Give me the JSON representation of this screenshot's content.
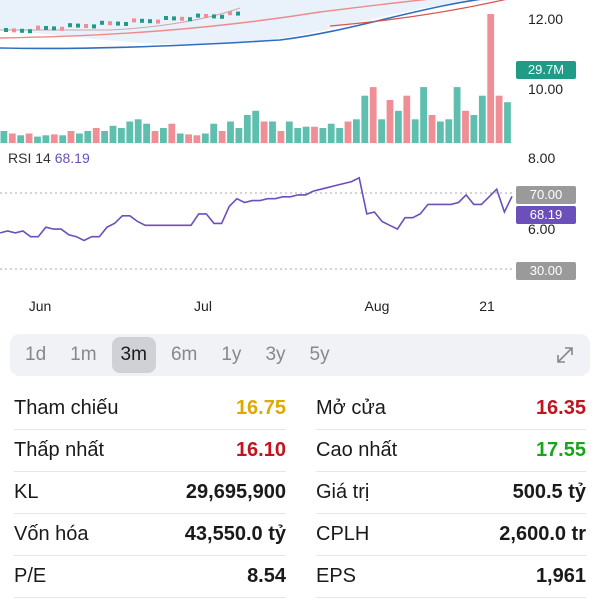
{
  "chart": {
    "price_axis": [
      "12.00",
      "10.00",
      "8.00",
      "6.00"
    ],
    "volume_tag": "29.7M",
    "rsi_legend_label": "RSI 14",
    "rsi_legend_value": "68.19",
    "rsi_tag_70": "70.00",
    "rsi_tag_value": "68.19",
    "rsi_tag_30": "30.00",
    "x_labels": [
      "Jun",
      "Jul",
      "Aug",
      "21"
    ],
    "colors": {
      "up": "#1f9b87",
      "up_volume": "#5ebfae",
      "down_volume": "#ef8f95",
      "rsi": "#6b4fbb",
      "ma_blue": "#2f6fbf",
      "ma_red": "#e04848"
    }
  },
  "chart_data": {
    "type": "bar",
    "title": "",
    "volume_bars": [
      {
        "v": 0.28,
        "up": true
      },
      {
        "v": 0.22,
        "up": false
      },
      {
        "v": 0.18,
        "up": true
      },
      {
        "v": 0.22,
        "up": false
      },
      {
        "v": 0.15,
        "up": true
      },
      {
        "v": 0.18,
        "up": true
      },
      {
        "v": 0.2,
        "up": false
      },
      {
        "v": 0.18,
        "up": true
      },
      {
        "v": 0.28,
        "up": false
      },
      {
        "v": 0.22,
        "up": true
      },
      {
        "v": 0.28,
        "up": true
      },
      {
        "v": 0.35,
        "up": false
      },
      {
        "v": 0.28,
        "up": true
      },
      {
        "v": 0.4,
        "up": true
      },
      {
        "v": 0.35,
        "up": true
      },
      {
        "v": 0.5,
        "up": true
      },
      {
        "v": 0.55,
        "up": true
      },
      {
        "v": 0.45,
        "up": true
      },
      {
        "v": 0.28,
        "up": false
      },
      {
        "v": 0.35,
        "up": true
      },
      {
        "v": 0.45,
        "up": false
      },
      {
        "v": 0.22,
        "up": true
      },
      {
        "v": 0.2,
        "up": false
      },
      {
        "v": 0.18,
        "up": false
      },
      {
        "v": 0.22,
        "up": true
      },
      {
        "v": 0.45,
        "up": true
      },
      {
        "v": 0.28,
        "up": false
      },
      {
        "v": 0.5,
        "up": true
      },
      {
        "v": 0.35,
        "up": true
      },
      {
        "v": 0.65,
        "up": true
      },
      {
        "v": 0.75,
        "up": true
      },
      {
        "v": 0.5,
        "up": false
      },
      {
        "v": 0.5,
        "up": true
      },
      {
        "v": 0.28,
        "up": false
      },
      {
        "v": 0.5,
        "up": true
      },
      {
        "v": 0.35,
        "up": true
      },
      {
        "v": 0.38,
        "up": true
      },
      {
        "v": 0.38,
        "up": false
      },
      {
        "v": 0.35,
        "up": true
      },
      {
        "v": 0.45,
        "up": true
      },
      {
        "v": 0.35,
        "up": true
      },
      {
        "v": 0.5,
        "up": false
      },
      {
        "v": 0.55,
        "up": true
      },
      {
        "v": 1.1,
        "up": true
      },
      {
        "v": 1.3,
        "up": false
      },
      {
        "v": 0.55,
        "up": true
      },
      {
        "v": 1.0,
        "up": false
      },
      {
        "v": 0.75,
        "up": true
      },
      {
        "v": 1.1,
        "up": false
      },
      {
        "v": 0.55,
        "up": true
      },
      {
        "v": 1.3,
        "up": true
      },
      {
        "v": 0.65,
        "up": false
      },
      {
        "v": 0.5,
        "up": true
      },
      {
        "v": 0.55,
        "up": true
      },
      {
        "v": 1.3,
        "up": true
      },
      {
        "v": 0.75,
        "up": false
      },
      {
        "v": 0.65,
        "up": true
      },
      {
        "v": 1.1,
        "up": true
      },
      {
        "v": 3.0,
        "up": false
      },
      {
        "v": 1.1,
        "up": false
      },
      {
        "v": 0.95,
        "up": true
      }
    ],
    "rsi": [
      49,
      50,
      49,
      50,
      47,
      47,
      52,
      51,
      51,
      48,
      47,
      45,
      47,
      47,
      52,
      54,
      58,
      58,
      55,
      53,
      53,
      53,
      53,
      53,
      53,
      53,
      59,
      59,
      54,
      54,
      63,
      67,
      65,
      66,
      66,
      67,
      67,
      68,
      68,
      69,
      69,
      71,
      72,
      73,
      74,
      75,
      76,
      78,
      59,
      60,
      55,
      53,
      51,
      57,
      57,
      59,
      64,
      64,
      64,
      64,
      65,
      69,
      64,
      64,
      68,
      72,
      60,
      68.19
    ],
    "rsi_levels": [
      70,
      30
    ],
    "price_ticks": [
      12.0,
      10.0,
      8.0,
      6.0
    ]
  },
  "range_tabs": [
    "1d",
    "1m",
    "3m",
    "6m",
    "1y",
    "3y",
    "5y"
  ],
  "active_range": "3m",
  "stats": [
    {
      "left_label": "Tham chiếu",
      "left_value": "16.75",
      "left_color": "yellow",
      "right_label": "Mở cửa",
      "right_value": "16.35",
      "right_color": "red"
    },
    {
      "left_label": "Thấp nhất",
      "left_value": "16.10",
      "left_color": "red",
      "right_label": "Cao nhất",
      "right_value": "17.55",
      "right_color": "green"
    },
    {
      "left_label": "KL",
      "left_value": "29,695,900",
      "left_color": "",
      "right_label": "Giá trị",
      "right_value": "500.5 tỷ",
      "right_color": ""
    },
    {
      "left_label": "Vốn hóa",
      "left_value": "43,550.0 tỷ",
      "left_color": "",
      "right_label": "CPLH",
      "right_value": "2,600.0 tr",
      "right_color": ""
    },
    {
      "left_label": "P/E",
      "left_value": "8.54",
      "left_color": "",
      "right_label": "EPS",
      "right_value": "1,961",
      "right_color": ""
    }
  ]
}
